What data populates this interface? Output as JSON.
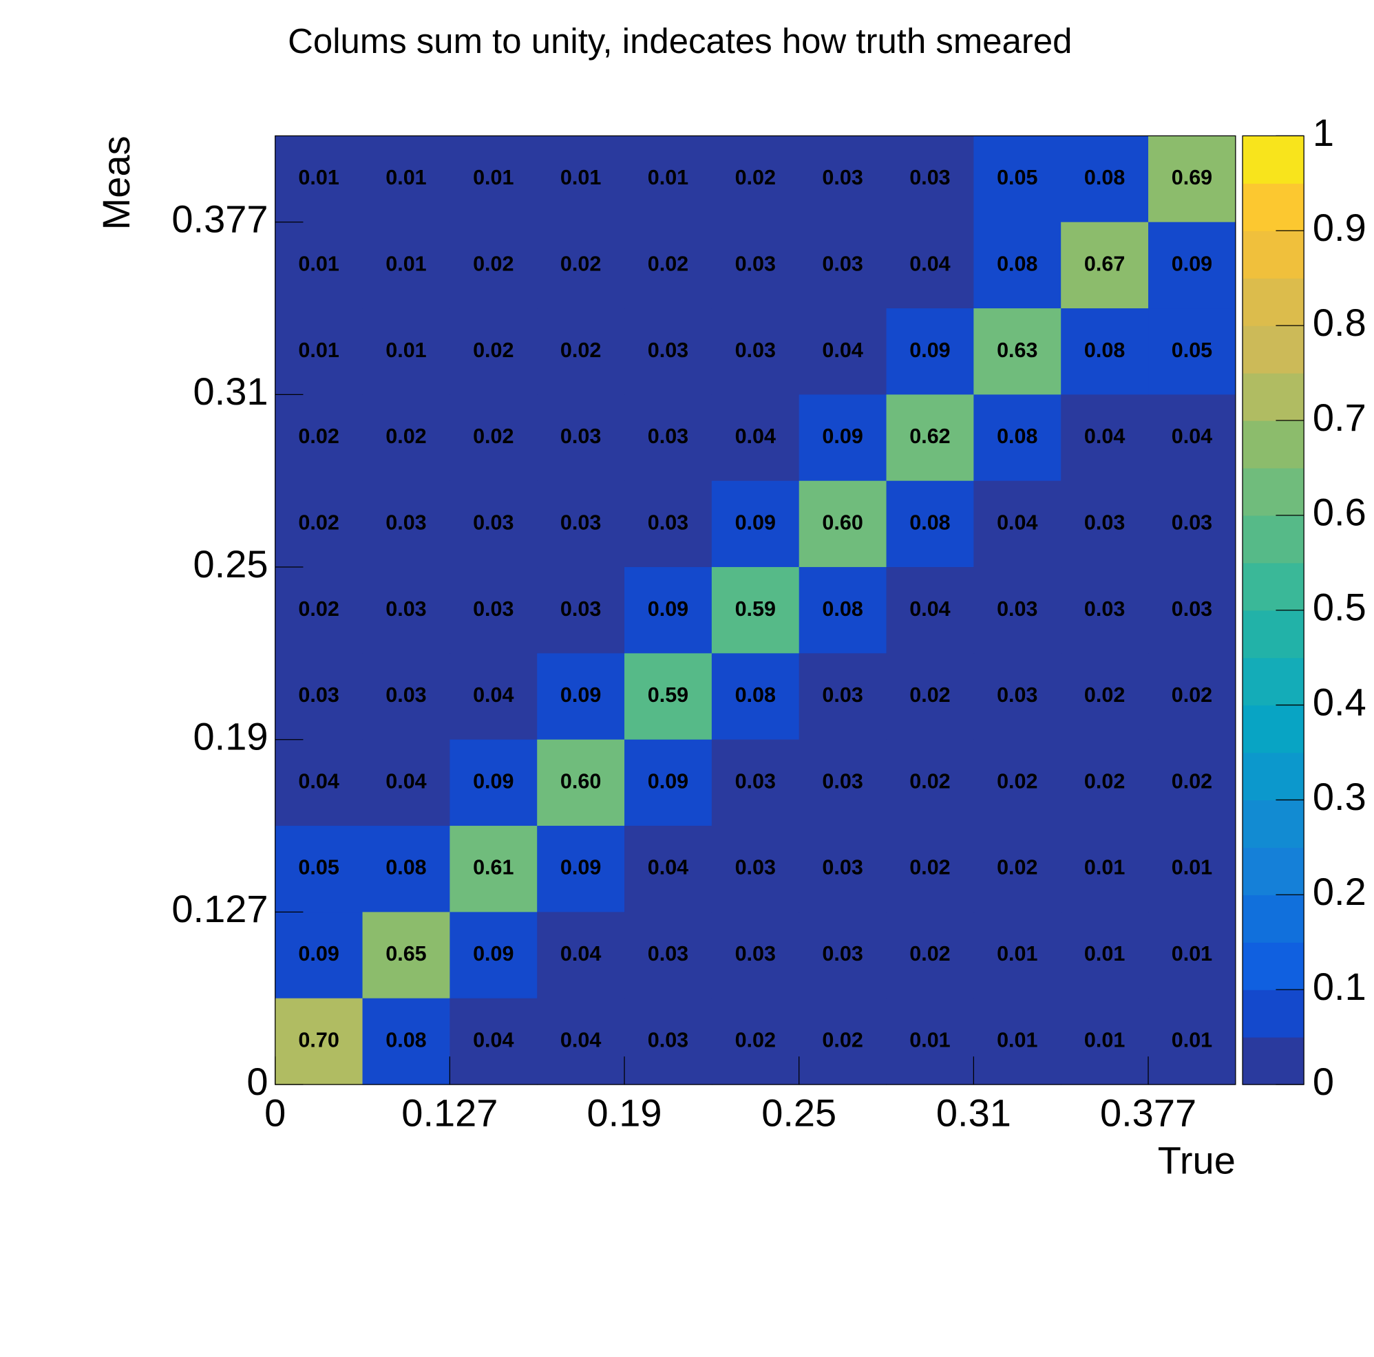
{
  "chart_data": {
    "type": "heatmap",
    "title": "Colums sum to unity, indecates how truth smeared",
    "xlabel": "True",
    "ylabel": "Meas",
    "xtick_labels": [
      "0",
      "0.127",
      "0.19",
      "0.25",
      "0.31",
      "0.377"
    ],
    "ytick_labels": [
      "0",
      "0.127",
      "0.19",
      "0.25",
      "0.31",
      "0.377"
    ],
    "rows": [
      [
        0.01,
        0.01,
        0.01,
        0.01,
        0.01,
        0.02,
        0.03,
        0.03,
        0.05,
        0.08,
        0.69
      ],
      [
        0.01,
        0.01,
        0.02,
        0.02,
        0.02,
        0.03,
        0.03,
        0.04,
        0.08,
        0.67,
        0.09
      ],
      [
        0.01,
        0.01,
        0.02,
        0.02,
        0.03,
        0.03,
        0.04,
        0.09,
        0.63,
        0.08,
        0.05
      ],
      [
        0.02,
        0.02,
        0.02,
        0.03,
        0.03,
        0.04,
        0.09,
        0.62,
        0.08,
        0.04,
        0.04
      ],
      [
        0.02,
        0.03,
        0.03,
        0.03,
        0.03,
        0.09,
        0.6,
        0.08,
        0.04,
        0.03,
        0.03
      ],
      [
        0.02,
        0.03,
        0.03,
        0.03,
        0.09,
        0.59,
        0.08,
        0.04,
        0.03,
        0.03,
        0.03
      ],
      [
        0.03,
        0.03,
        0.04,
        0.09,
        0.59,
        0.08,
        0.03,
        0.02,
        0.03,
        0.02,
        0.02
      ],
      [
        0.04,
        0.04,
        0.09,
        0.6,
        0.09,
        0.03,
        0.03,
        0.02,
        0.02,
        0.02,
        0.02
      ],
      [
        0.05,
        0.08,
        0.61,
        0.09,
        0.04,
        0.03,
        0.03,
        0.02,
        0.02,
        0.01,
        0.01
      ],
      [
        0.09,
        0.65,
        0.09,
        0.04,
        0.03,
        0.03,
        0.03,
        0.02,
        0.01,
        0.01,
        0.01
      ],
      [
        0.7,
        0.08,
        0.04,
        0.04,
        0.03,
        0.02,
        0.02,
        0.01,
        0.01,
        0.01,
        0.01
      ]
    ],
    "value_labels": [
      [
        "0.01",
        "0.01",
        "0.01",
        "0.01",
        "0.01",
        "0.02",
        "0.03",
        "0.03",
        "0.05",
        "0.08",
        "0.69"
      ],
      [
        "0.01",
        "0.01",
        "0.02",
        "0.02",
        "0.02",
        "0.03",
        "0.03",
        "0.04",
        "0.08",
        "0.67",
        "0.09"
      ],
      [
        "0.01",
        "0.01",
        "0.02",
        "0.02",
        "0.03",
        "0.03",
        "0.04",
        "0.09",
        "0.63",
        "0.08",
        "0.05"
      ],
      [
        "0.02",
        "0.02",
        "0.02",
        "0.03",
        "0.03",
        "0.04",
        "0.09",
        "0.62",
        "0.08",
        "0.04",
        "0.04"
      ],
      [
        "0.02",
        "0.03",
        "0.03",
        "0.03",
        "0.03",
        "0.09",
        "0.60",
        "0.08",
        "0.04",
        "0.03",
        "0.03"
      ],
      [
        "0.02",
        "0.03",
        "0.03",
        "0.03",
        "0.09",
        "0.59",
        "0.08",
        "0.04",
        "0.03",
        "0.03",
        "0.03"
      ],
      [
        "0.03",
        "0.03",
        "0.04",
        "0.09",
        "0.59",
        "0.08",
        "0.03",
        "0.02",
        "0.03",
        "0.02",
        "0.02"
      ],
      [
        "0.04",
        "0.04",
        "0.09",
        "0.60",
        "0.09",
        "0.03",
        "0.03",
        "0.02",
        "0.02",
        "0.02",
        "0.02"
      ],
      [
        "0.05",
        "0.08",
        "0.61",
        "0.09",
        "0.04",
        "0.03",
        "0.03",
        "0.02",
        "0.02",
        "0.01",
        "0.01"
      ],
      [
        "0.09",
        "0.65",
        "0.09",
        "0.04",
        "0.03",
        "0.03",
        "0.03",
        "0.02",
        "0.01",
        "0.01",
        "0.01"
      ],
      [
        "0.70",
        "0.08",
        "0.04",
        "0.04",
        "0.03",
        "0.02",
        "0.02",
        "0.01",
        "0.01",
        "0.01",
        "0.01"
      ]
    ],
    "zlim": [
      0,
      1
    ],
    "zticks": [
      0,
      0.1,
      0.2,
      0.3,
      0.4,
      0.5,
      0.6,
      0.7,
      0.8,
      0.9,
      1
    ],
    "colorscale": [
      "#2a3a9e",
      "#1449cc",
      "#1060e0",
      "#1170dc",
      "#1580d8",
      "#128bd2",
      "#0c98cc",
      "#08a4c4",
      "#14acb8",
      "#22b2a8",
      "#3ab898",
      "#56ba88",
      "#70bc7c",
      "#8cbc6c",
      "#b0bc62",
      "#ccba58",
      "#dcbc4c",
      "#f0c03c",
      "#fcc830",
      "#f8e41c"
    ]
  }
}
